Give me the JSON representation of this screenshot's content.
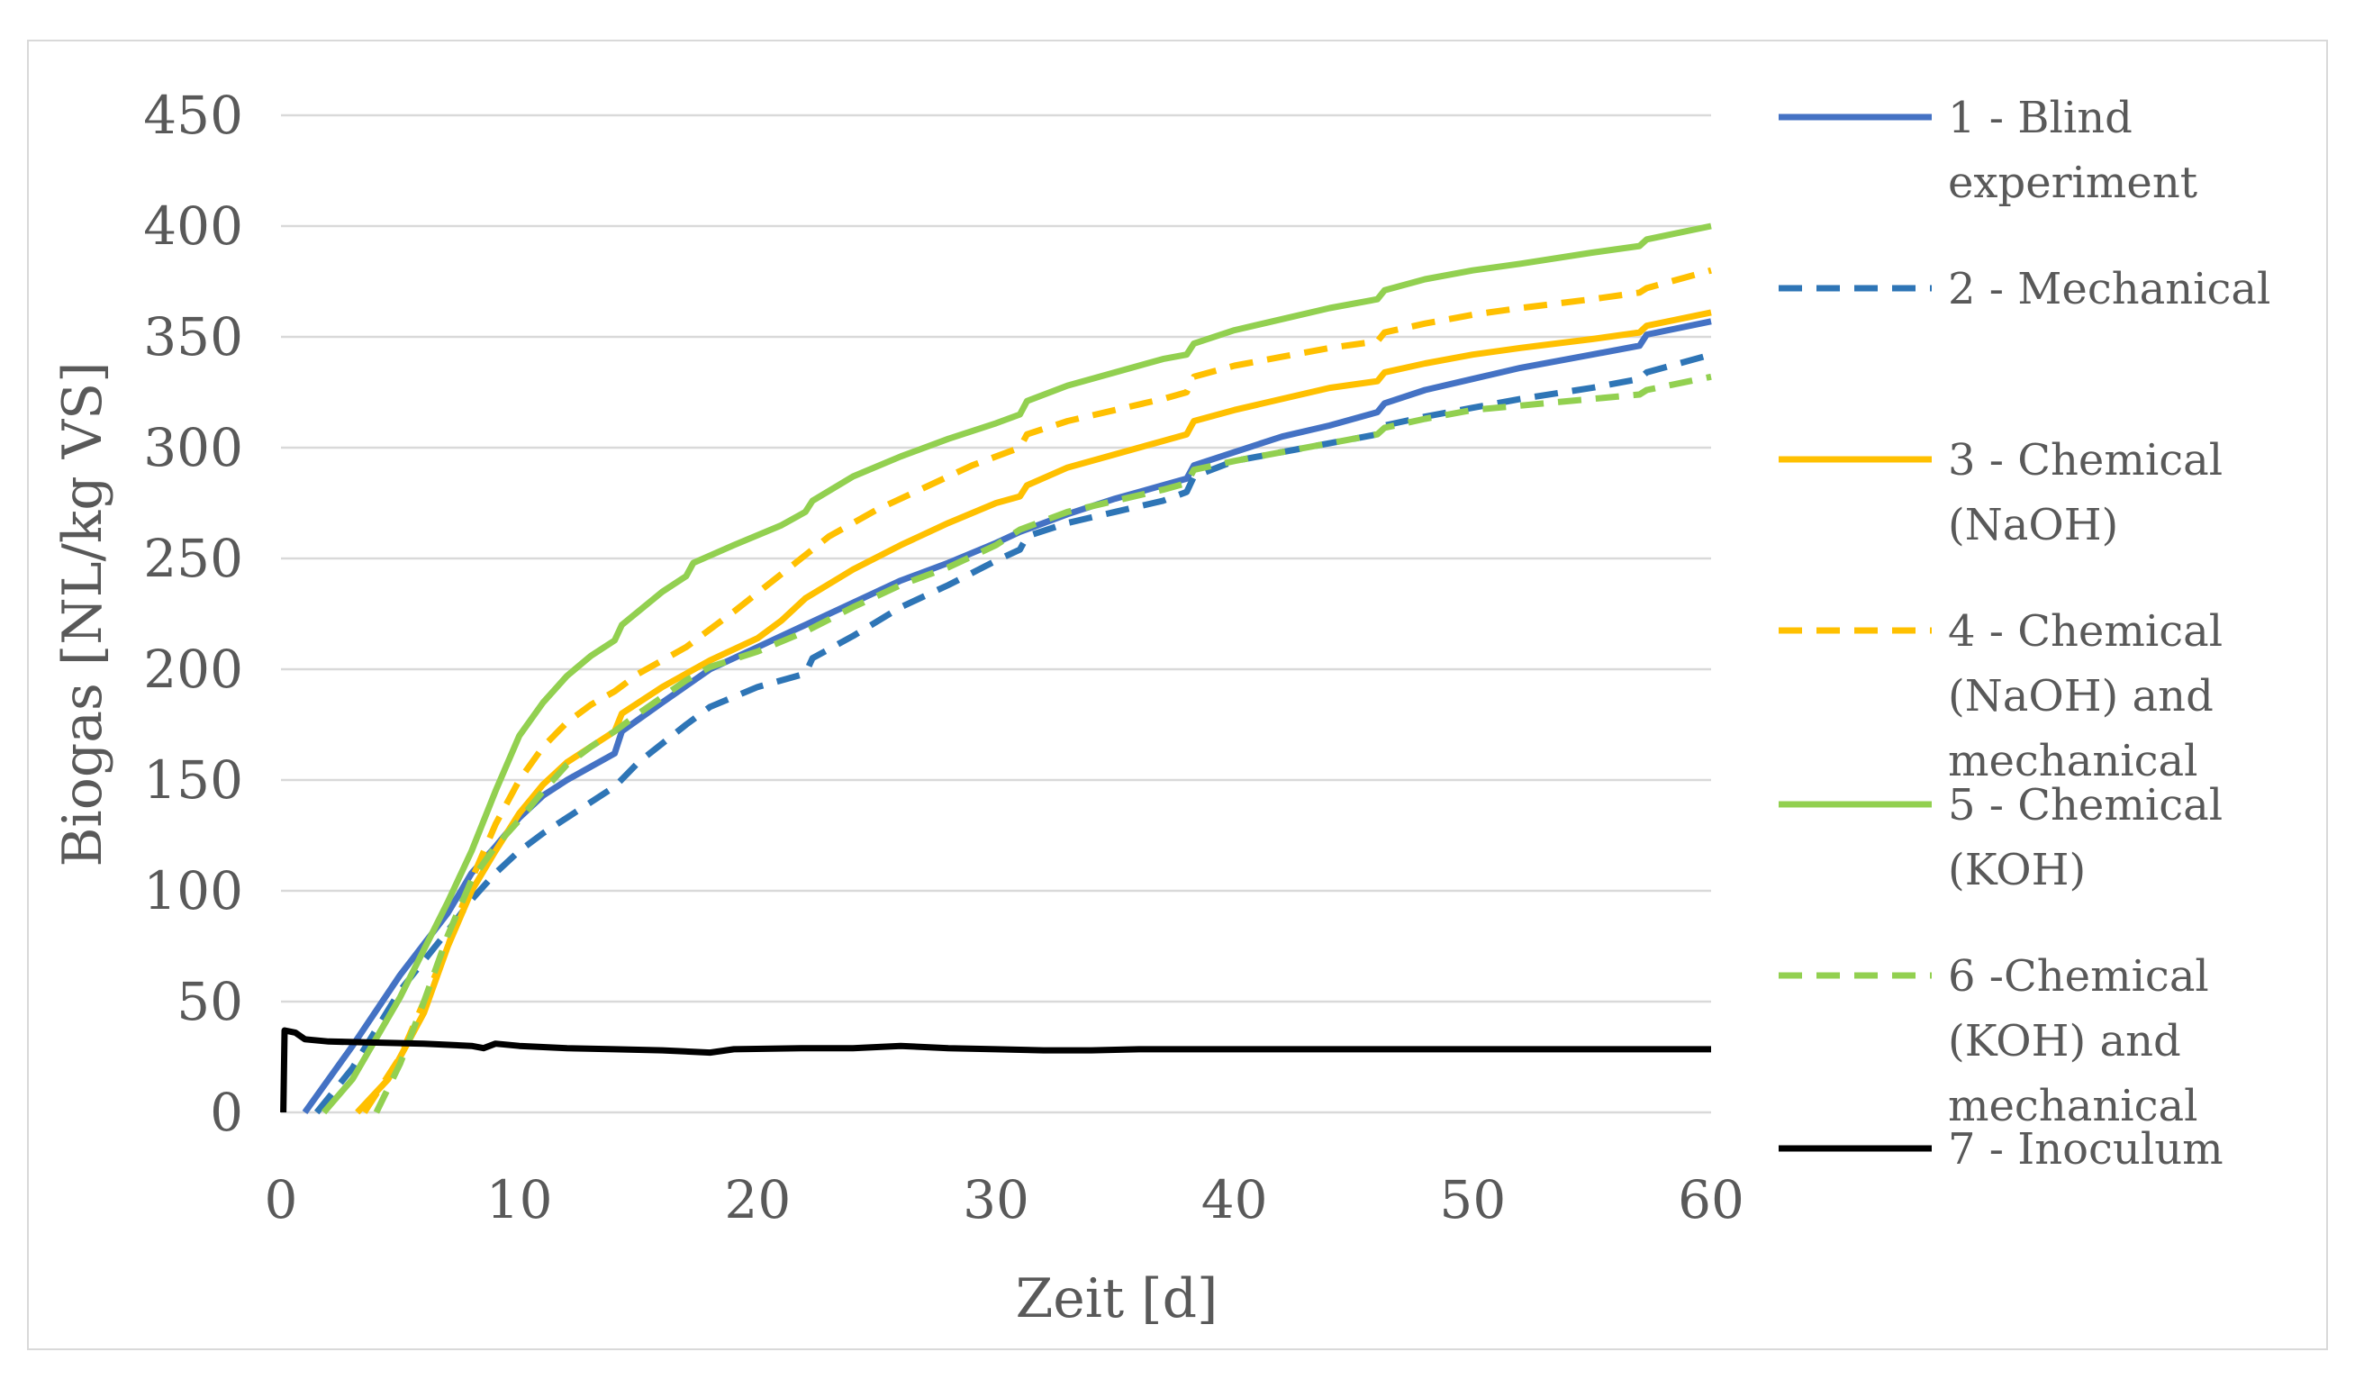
{
  "chart_data": {
    "type": "line",
    "title": "",
    "xlabel": "Zeit [d]",
    "ylabel": "Biogas  [NL/kg VS]",
    "xlim": [
      0,
      60
    ],
    "ylim": [
      0,
      450
    ],
    "xticks": [
      0,
      10,
      20,
      30,
      40,
      50,
      60
    ],
    "yticks": [
      0,
      50,
      100,
      150,
      200,
      250,
      300,
      350,
      400,
      450
    ],
    "grid": "horizontal",
    "legend_position": "right",
    "series": [
      {
        "name": "1 - Blind experiment",
        "legend_lines": [
          "1 - Blind",
          "experiment"
        ],
        "color": "#4472c4",
        "dash": "solid",
        "points": [
          [
            1,
            0
          ],
          [
            3,
            30
          ],
          [
            5,
            62
          ],
          [
            7,
            90
          ],
          [
            8,
            108
          ],
          [
            9,
            120
          ],
          [
            10,
            133
          ],
          [
            11,
            143
          ],
          [
            12,
            150
          ],
          [
            13,
            156
          ],
          [
            14,
            162
          ],
          [
            14.3,
            172
          ],
          [
            16,
            185
          ],
          [
            18,
            200
          ],
          [
            20,
            210
          ],
          [
            22,
            220
          ],
          [
            24,
            230
          ],
          [
            26,
            240
          ],
          [
            28,
            248
          ],
          [
            30,
            257
          ],
          [
            31,
            262
          ],
          [
            33,
            270
          ],
          [
            35,
            277
          ],
          [
            37,
            283
          ],
          [
            38,
            286
          ],
          [
            38.3,
            292
          ],
          [
            40,
            298
          ],
          [
            42,
            305
          ],
          [
            44,
            310
          ],
          [
            46,
            316
          ],
          [
            46.3,
            320
          ],
          [
            48,
            326
          ],
          [
            50,
            331
          ],
          [
            52,
            336
          ],
          [
            55,
            342
          ],
          [
            57,
            346
          ],
          [
            57.3,
            351
          ],
          [
            60,
            357
          ]
        ]
      },
      {
        "name": "2 - Mechanical",
        "legend_lines": [
          "2 - Mechanical"
        ],
        "color": "#2e75b6",
        "dash": "dashed",
        "points": [
          [
            1.5,
            0
          ],
          [
            3,
            20
          ],
          [
            5,
            55
          ],
          [
            7,
            82
          ],
          [
            8,
            96
          ],
          [
            9,
            108
          ],
          [
            10,
            118
          ],
          [
            11,
            126
          ],
          [
            12,
            133
          ],
          [
            13,
            140
          ],
          [
            14,
            147
          ],
          [
            15,
            158
          ],
          [
            17,
            175
          ],
          [
            18,
            183
          ],
          [
            20,
            192
          ],
          [
            22,
            198
          ],
          [
            22.3,
            205
          ],
          [
            24,
            215
          ],
          [
            26,
            228
          ],
          [
            28,
            238
          ],
          [
            30,
            249
          ],
          [
            31,
            254
          ],
          [
            31.3,
            260
          ],
          [
            33,
            266
          ],
          [
            35,
            271
          ],
          [
            37,
            276
          ],
          [
            38,
            280
          ],
          [
            38.3,
            287
          ],
          [
            40,
            294
          ],
          [
            42,
            298
          ],
          [
            44,
            302
          ],
          [
            46,
            306
          ],
          [
            46.3,
            310
          ],
          [
            48,
            314
          ],
          [
            50,
            318
          ],
          [
            52,
            322
          ],
          [
            55,
            327
          ],
          [
            57,
            331
          ],
          [
            57.3,
            334
          ],
          [
            60,
            342
          ]
        ]
      },
      {
        "name": "3 - Chemical (NaOH)",
        "legend_lines": [
          "3 - Chemical",
          "(NaOH)"
        ],
        "color": "#ffc000",
        "dash": "solid",
        "points": [
          [
            3.2,
            0
          ],
          [
            4.5,
            15
          ],
          [
            6,
            45
          ],
          [
            7,
            75
          ],
          [
            8,
            100
          ],
          [
            9,
            118
          ],
          [
            10,
            135
          ],
          [
            11,
            148
          ],
          [
            12,
            158
          ],
          [
            13,
            165
          ],
          [
            14,
            172
          ],
          [
            14.3,
            180
          ],
          [
            16,
            192
          ],
          [
            18,
            204
          ],
          [
            20,
            214
          ],
          [
            21,
            222
          ],
          [
            22,
            232
          ],
          [
            24,
            245
          ],
          [
            26,
            256
          ],
          [
            28,
            266
          ],
          [
            30,
            275
          ],
          [
            31,
            278
          ],
          [
            31.3,
            283
          ],
          [
            33,
            291
          ],
          [
            35,
            297
          ],
          [
            37,
            303
          ],
          [
            38,
            306
          ],
          [
            38.3,
            312
          ],
          [
            40,
            317
          ],
          [
            42,
            322
          ],
          [
            44,
            327
          ],
          [
            46,
            330
          ],
          [
            46.3,
            334
          ],
          [
            48,
            338
          ],
          [
            50,
            342
          ],
          [
            52,
            345
          ],
          [
            55,
            349
          ],
          [
            57,
            352
          ],
          [
            57.3,
            355
          ],
          [
            60,
            361
          ]
        ]
      },
      {
        "name": "4 - Chemical (NaOH) and mechanical",
        "legend_lines": [
          "4 - Chemical",
          "(NaOH) and",
          "mechanical"
        ],
        "color": "#ffc000",
        "dash": "dashed",
        "points": [
          [
            3.5,
            0
          ],
          [
            5,
            25
          ],
          [
            6,
            50
          ],
          [
            7,
            75
          ],
          [
            8,
            105
          ],
          [
            9,
            130
          ],
          [
            10,
            150
          ],
          [
            11,
            165
          ],
          [
            12,
            176
          ],
          [
            13,
            184
          ],
          [
            14,
            190
          ],
          [
            15,
            198
          ],
          [
            17,
            210
          ],
          [
            19,
            226
          ],
          [
            21,
            243
          ],
          [
            23,
            260
          ],
          [
            25,
            272
          ],
          [
            27,
            282
          ],
          [
            29,
            292
          ],
          [
            30,
            296
          ],
          [
            31,
            300
          ],
          [
            31.3,
            306
          ],
          [
            33,
            312
          ],
          [
            35,
            317
          ],
          [
            37,
            322
          ],
          [
            38,
            325
          ],
          [
            38.3,
            332
          ],
          [
            40,
            337
          ],
          [
            42,
            341
          ],
          [
            44,
            345
          ],
          [
            46,
            348
          ],
          [
            46.3,
            352
          ],
          [
            48,
            356
          ],
          [
            50,
            360
          ],
          [
            52,
            363
          ],
          [
            55,
            367
          ],
          [
            57,
            370
          ],
          [
            57.3,
            372
          ],
          [
            60,
            380
          ]
        ]
      },
      {
        "name": "5 - Chemical (KOH)",
        "legend_lines": [
          "5 - Chemical",
          "(KOH)"
        ],
        "color": "#92d050",
        "dash": "solid",
        "points": [
          [
            1.8,
            0
          ],
          [
            3,
            15
          ],
          [
            5,
            52
          ],
          [
            7,
            95
          ],
          [
            8,
            118
          ],
          [
            9,
            145
          ],
          [
            10,
            170
          ],
          [
            11,
            185
          ],
          [
            12,
            197
          ],
          [
            13,
            206
          ],
          [
            14,
            213
          ],
          [
            14.3,
            220
          ],
          [
            16,
            235
          ],
          [
            17,
            242
          ],
          [
            17.3,
            248
          ],
          [
            19,
            256
          ],
          [
            21,
            265
          ],
          [
            22,
            271
          ],
          [
            22.3,
            276
          ],
          [
            24,
            287
          ],
          [
            26,
            296
          ],
          [
            28,
            304
          ],
          [
            30,
            311
          ],
          [
            31,
            315
          ],
          [
            31.3,
            321
          ],
          [
            33,
            328
          ],
          [
            35,
            334
          ],
          [
            37,
            340
          ],
          [
            38,
            342
          ],
          [
            38.3,
            347
          ],
          [
            40,
            353
          ],
          [
            42,
            358
          ],
          [
            44,
            363
          ],
          [
            46,
            367
          ],
          [
            46.3,
            371
          ],
          [
            48,
            376
          ],
          [
            50,
            380
          ],
          [
            52,
            383
          ],
          [
            55,
            388
          ],
          [
            57,
            391
          ],
          [
            57.3,
            394
          ],
          [
            60,
            400
          ]
        ]
      },
      {
        "name": "6 -Chemical (KOH) and mechanical",
        "legend_lines": [
          "6 -Chemical",
          "(KOH) and",
          "mechanical"
        ],
        "color": "#92d050",
        "dash": "dashed",
        "points": [
          [
            4,
            0
          ],
          [
            5,
            22
          ],
          [
            6,
            50
          ],
          [
            7,
            80
          ],
          [
            8,
            105
          ],
          [
            9,
            120
          ],
          [
            10,
            132
          ],
          [
            11,
            145
          ],
          [
            12,
            157
          ],
          [
            13,
            165
          ],
          [
            14,
            172
          ],
          [
            15,
            180
          ],
          [
            17,
            195
          ],
          [
            18,
            201
          ],
          [
            20,
            208
          ],
          [
            22,
            217
          ],
          [
            24,
            228
          ],
          [
            26,
            238
          ],
          [
            28,
            246
          ],
          [
            30,
            256
          ],
          [
            31,
            263
          ],
          [
            33,
            271
          ],
          [
            35,
            276
          ],
          [
            37,
            281
          ],
          [
            38,
            284
          ],
          [
            38.3,
            290
          ],
          [
            40,
            294
          ],
          [
            42,
            298
          ],
          [
            44,
            302
          ],
          [
            46,
            306
          ],
          [
            46.3,
            309
          ],
          [
            48,
            313
          ],
          [
            50,
            317
          ],
          [
            52,
            319
          ],
          [
            55,
            322
          ],
          [
            57,
            324
          ],
          [
            57.3,
            326
          ],
          [
            60,
            332
          ]
        ]
      },
      {
        "name": "7 - Inoculum",
        "legend_lines": [
          "7 - Inoculum"
        ],
        "color": "#000000",
        "dash": "solid",
        "points": [
          [
            0.1,
            0
          ],
          [
            0.15,
            37
          ],
          [
            0.6,
            36
          ],
          [
            1,
            33
          ],
          [
            2,
            32
          ],
          [
            4,
            31.5
          ],
          [
            6,
            31
          ],
          [
            8,
            30
          ],
          [
            8.5,
            29
          ],
          [
            9,
            31
          ],
          [
            10,
            30
          ],
          [
            12,
            29
          ],
          [
            14,
            28.5
          ],
          [
            16,
            28
          ],
          [
            18,
            27
          ],
          [
            19,
            28.5
          ],
          [
            22,
            29
          ],
          [
            24,
            29
          ],
          [
            26,
            30
          ],
          [
            28,
            29
          ],
          [
            30,
            28.5
          ],
          [
            32,
            28
          ],
          [
            34,
            28
          ],
          [
            36,
            28.5
          ],
          [
            40,
            28.5
          ],
          [
            50,
            28.5
          ],
          [
            60,
            28.5
          ]
        ]
      }
    ]
  }
}
